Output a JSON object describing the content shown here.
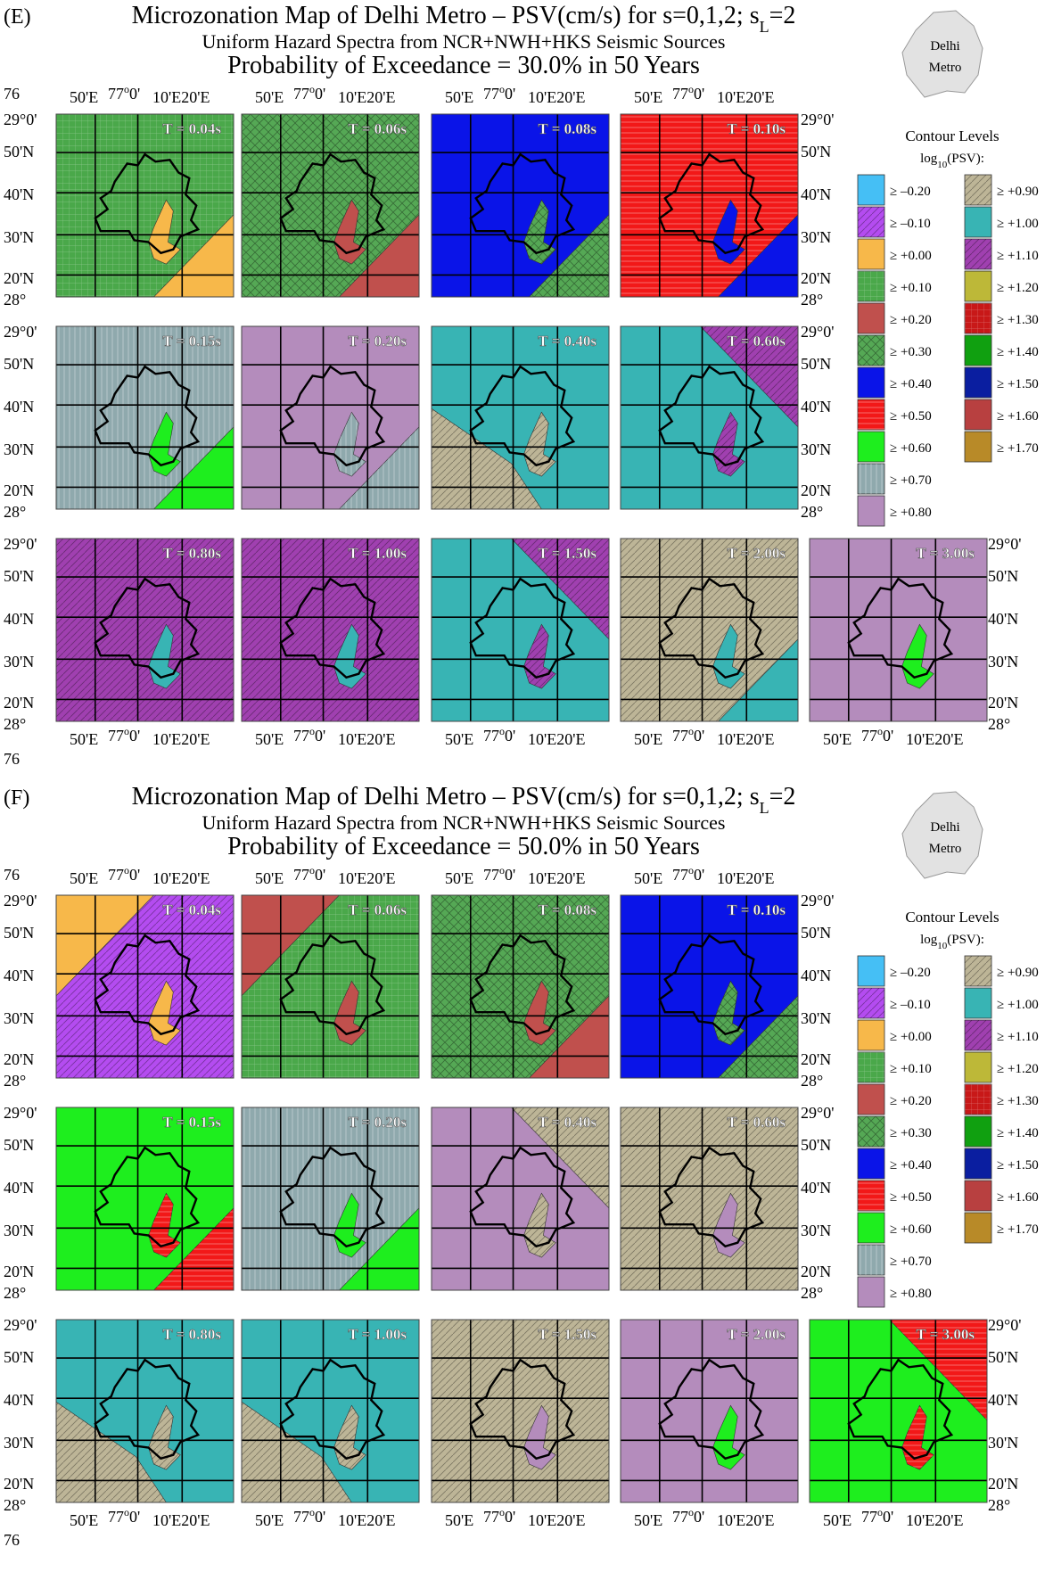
{
  "panels": [
    {
      "label": "(E)",
      "title": "Microzonation Map of Delhi Metro – PSV(cm/s) for s=0,1,2; s",
      "title_sub": "L",
      "title_end": "=2",
      "subtitle": "Uniform Hazard Spectra from NCR+NWH+HKS Seismic Sources",
      "probability": "Probability of Exceedance = 30.0% in 50 Years",
      "maps": [
        {
          "period": "T = 0.04s",
          "base": "+0.10",
          "patch": "+0.00",
          "corner": "br"
        },
        {
          "period": "T = 0.06s",
          "base": "+0.30",
          "patch": "+0.20",
          "corner": "br"
        },
        {
          "period": "T = 0.08s",
          "base": "+0.40",
          "patch": "+0.30",
          "corner": "br"
        },
        {
          "period": "T = 0.10s",
          "base": "+0.50",
          "patch": "+0.40",
          "corner": "br"
        },
        {
          "period": "T = 0.15s",
          "base": "+0.70",
          "patch": "+0.60",
          "corner": "br"
        },
        {
          "period": "T = 0.20s",
          "base": "+0.80",
          "patch": "+0.70",
          "corner": "br"
        },
        {
          "period": "T = 0.40s",
          "base": "+1.00",
          "patch": "+0.90",
          "corner": "bl"
        },
        {
          "period": "T = 0.60s",
          "base": "+1.00",
          "patch": "+1.10",
          "corner": "tr"
        },
        {
          "period": "T = 0.80s",
          "base": "+1.10",
          "patch": "+1.00",
          "corner": "none"
        },
        {
          "period": "T = 1.00s",
          "base": "+1.10",
          "patch": "+1.00",
          "corner": "none"
        },
        {
          "period": "T = 1.50s",
          "base": "+1.00",
          "patch": "+1.10",
          "corner": "tr"
        },
        {
          "period": "T = 2.00s",
          "base": "+0.90",
          "patch": "+1.00",
          "corner": "br"
        },
        {
          "period": "T = 3.00s",
          "base": "+0.80",
          "patch": "+0.60",
          "corner": "none"
        }
      ]
    },
    {
      "label": "(F)",
      "title": "Microzonation Map of Delhi Metro – PSV(cm/s) for s=0,1,2; s",
      "title_sub": "L",
      "title_end": "=2",
      "subtitle": "Uniform Hazard Spectra from NCR+NWH+HKS Seismic Sources",
      "probability": "Probability of Exceedance = 50.0% in 50 Years",
      "maps": [
        {
          "period": "T = 0.04s",
          "base": "-0.10",
          "patch": "+0.00",
          "corner": "tl"
        },
        {
          "period": "T = 0.06s",
          "base": "+0.10",
          "patch": "+0.20",
          "corner": "tl"
        },
        {
          "period": "T = 0.08s",
          "base": "+0.30",
          "patch": "+0.20",
          "corner": "br"
        },
        {
          "period": "T = 0.10s",
          "base": "+0.40",
          "patch": "+0.30",
          "corner": "br"
        },
        {
          "period": "T = 0.15s",
          "base": "+0.60",
          "patch": "+0.50",
          "corner": "br"
        },
        {
          "period": "T = 0.20s",
          "base": "+0.70",
          "patch": "+0.60",
          "corner": "br"
        },
        {
          "period": "T = 0.40s",
          "base": "+0.80",
          "patch": "+0.90",
          "corner": "tr"
        },
        {
          "period": "T = 0.60s",
          "base": "+0.90",
          "patch": "+0.80",
          "corner": "none"
        },
        {
          "period": "T = 0.80s",
          "base": "+1.00",
          "patch": "+0.90",
          "corner": "bl"
        },
        {
          "period": "T = 1.00s",
          "base": "+1.00",
          "patch": "+0.90",
          "corner": "bl"
        },
        {
          "period": "T = 1.50s",
          "base": "+0.90",
          "patch": "+0.80",
          "corner": "none"
        },
        {
          "period": "T = 2.00s",
          "base": "+0.80",
          "patch": "+0.60",
          "corner": "none"
        },
        {
          "period": "T = 3.00s",
          "base": "+0.60",
          "patch": "+0.50",
          "corner": "tr"
        }
      ]
    }
  ],
  "axes": {
    "lon_top_left": "76",
    "lon_labels": [
      "50'E",
      "77",
      "0'",
      "10'E",
      "20'E"
    ],
    "lat_labels": [
      "29",
      "0'",
      "50'N",
      "40'N",
      "30'N",
      "20'N",
      "28"
    ],
    "degree_sup": "o"
  },
  "inset": {
    "line1": "Delhi",
    "line2": "Metro"
  },
  "legend": {
    "title": "Contour Levels",
    "subtitle_pre": "log",
    "subtitle_sub": "10",
    "subtitle_post": "(PSV):",
    "levels": [
      {
        "label": "≥ –0.20",
        "key": "-0.20",
        "color": "#45bff5",
        "hatch": "none"
      },
      {
        "label": "≥ –0.10",
        "key": "-0.10",
        "color": "#b44cf0",
        "hatch": "diag"
      },
      {
        "label": "≥ +0.00",
        "key": "+0.00",
        "color": "#f7b84a",
        "hatch": "none"
      },
      {
        "label": "≥ +0.10",
        "key": "+0.10",
        "color": "#4aa84a",
        "hatch": "grid"
      },
      {
        "label": "≥ +0.20",
        "key": "+0.20",
        "color": "#c0504d",
        "hatch": "none"
      },
      {
        "label": "≥ +0.30",
        "key": "+0.30",
        "color": "#55a855",
        "hatch": "cross"
      },
      {
        "label": "≥ +0.40",
        "key": "+0.40",
        "color": "#0a14e8",
        "hatch": "none"
      },
      {
        "label": "≥ +0.50",
        "key": "+0.50",
        "color": "#f21818",
        "hatch": "horiz"
      },
      {
        "label": "≥ +0.60",
        "key": "+0.60",
        "color": "#1eee1e",
        "hatch": "none"
      },
      {
        "label": "≥ +0.70",
        "key": "+0.70",
        "color": "#8fa9ad",
        "hatch": "vert"
      },
      {
        "label": "≥ +0.80",
        "key": "+0.80",
        "color": "#b48cbc",
        "hatch": "none"
      },
      {
        "label": "≥ +0.90",
        "key": "+0.90",
        "color": "#bdb597",
        "hatch": "diag"
      },
      {
        "label": "≥ +1.00",
        "key": "+1.00",
        "color": "#38b4b4",
        "hatch": "none"
      },
      {
        "label": "≥ +1.10",
        "key": "+1.10",
        "color": "#a040b0",
        "hatch": "diag"
      },
      {
        "label": "≥ +1.20",
        "key": "+1.20",
        "color": "#bdb838",
        "hatch": "none"
      },
      {
        "label": "≥ +1.30",
        "key": "+1.30",
        "color": "#c81818",
        "hatch": "grid"
      },
      {
        "label": "≥ +1.40",
        "key": "+1.40",
        "color": "#10a010",
        "hatch": "none"
      },
      {
        "label": "≥ +1.50",
        "key": "+1.50",
        "color": "#0a1ea0",
        "hatch": "none"
      },
      {
        "label": "≥ +1.60",
        "key": "+1.60",
        "color": "#b84040",
        "hatch": "none"
      },
      {
        "label": "≥ +1.70",
        "key": "+1.70",
        "color": "#b88a28",
        "hatch": "none"
      }
    ]
  }
}
